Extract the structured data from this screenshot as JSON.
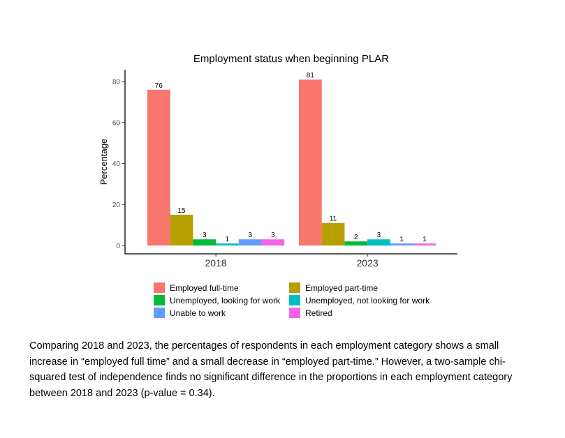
{
  "chart_data": {
    "type": "bar",
    "title": "Employment status when beginning PLAR",
    "xlabel": "",
    "ylabel": "Percentage",
    "categories": [
      "2018",
      "2023"
    ],
    "ylim": [
      0,
      85
    ],
    "yticks": [
      0,
      20,
      40,
      60,
      80
    ],
    "grid": false,
    "legend_position": "bottom",
    "series": [
      {
        "name": "Employed full-time",
        "color": "#F8766D",
        "values": [
          76,
          81
        ]
      },
      {
        "name": "Employed part-time",
        "color": "#B79F00",
        "values": [
          15,
          11
        ]
      },
      {
        "name": "Unemployed, looking for work",
        "color": "#00BA38",
        "values": [
          3,
          2
        ]
      },
      {
        "name": "Unemployed, not looking for work",
        "color": "#00BFC4",
        "values": [
          1,
          3
        ]
      },
      {
        "name": "Unable to work",
        "color": "#619CFF",
        "values": [
          3,
          1
        ]
      },
      {
        "name": "Retired",
        "color": "#F564E3",
        "values": [
          3,
          1
        ]
      }
    ]
  },
  "caption": "Comparing 2018 and 2023, the percentages of respondents in each employment category shows a small increase in “employed full time” and a small decrease in “employed part-time.” However, a two-sample chi-squared test of independence finds no significant difference in the proportions in each employment category between 2018 and 2023 (p-value = 0.34)."
}
